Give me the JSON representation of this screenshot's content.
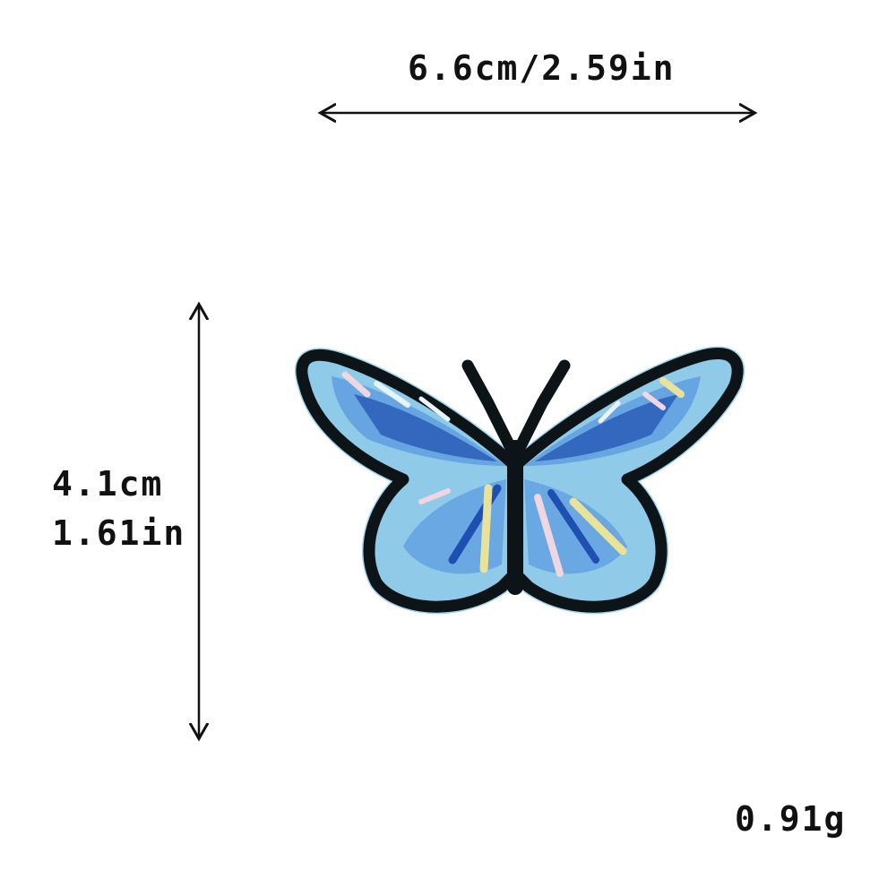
{
  "dimensions": {
    "width_label": "6.6cm/2.59in",
    "height_label_cm": "4.1cm",
    "height_label_in": "1.61in"
  },
  "weight_label": "0.91g",
  "colors": {
    "outline": "#0d1418",
    "wing_light": "#8fcbe8",
    "wing_mid": "#5f9fe0",
    "wing_dark": "#1f4fb0",
    "accent_yellow": "#e8e29a",
    "accent_pink": "#f0d6e0",
    "arrow": "#111111"
  },
  "product": {
    "icon": "butterfly-patch-icon"
  }
}
